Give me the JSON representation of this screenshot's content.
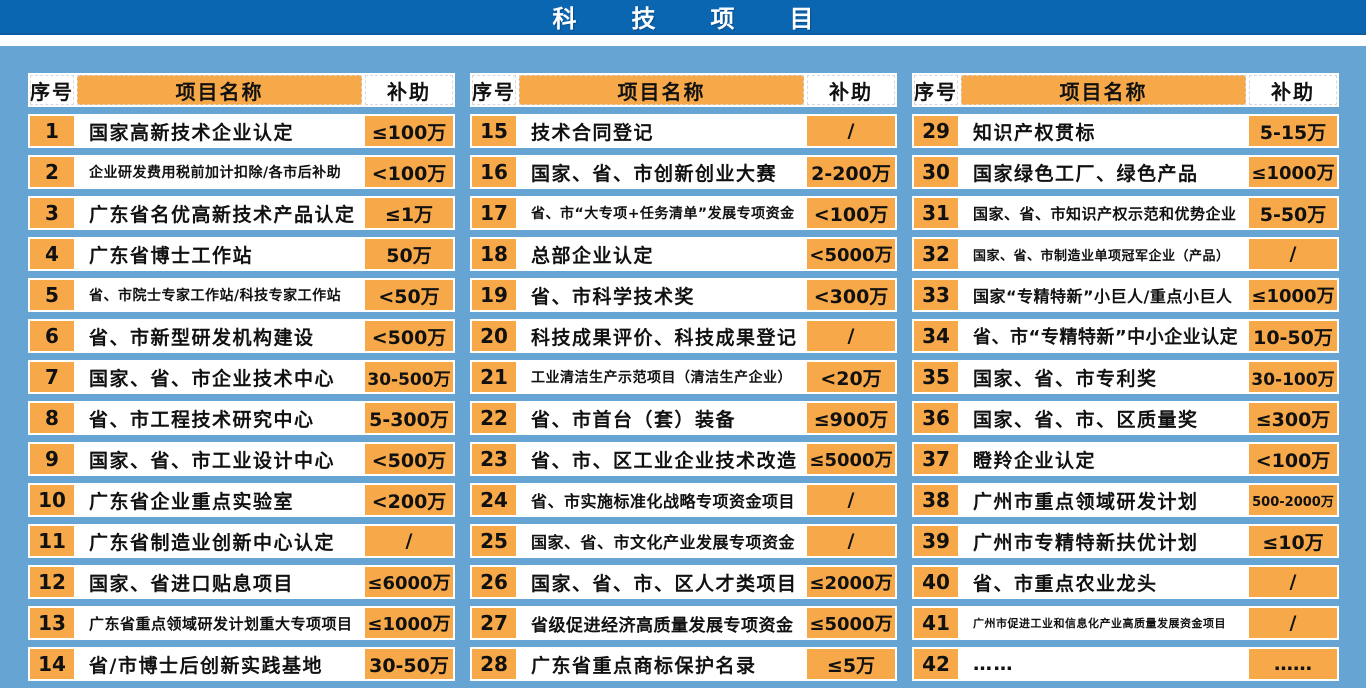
{
  "title": "科技项目",
  "columns": {
    "index": "序号",
    "name": "项目名称",
    "subsidy": "补助"
  },
  "colors": {
    "top_bar_blue": "#0b66b2",
    "background_blue": "#66a5d3",
    "cell_orange": "#f7a94a",
    "cell_white": "#ffffff",
    "text_dark": "#111111",
    "title_white": "#ffffff"
  },
  "tables": [
    {
      "rows": [
        {
          "no": "1",
          "name": "国家高新技术企业认定",
          "subsidy": "≤100万"
        },
        {
          "no": "2",
          "name": "企业研发费用税前加计扣除/各市后补助",
          "subsidy": "<100万"
        },
        {
          "no": "3",
          "name": "广东省名优高新技术产品认定",
          "subsidy": "≤1万"
        },
        {
          "no": "4",
          "name": "广东省博士工作站",
          "subsidy": "50万"
        },
        {
          "no": "5",
          "name": "省、市院士专家工作站/科技专家工作站",
          "subsidy": "<50万"
        },
        {
          "no": "6",
          "name": "省、市新型研发机构建设",
          "subsidy": "<500万"
        },
        {
          "no": "7",
          "name": "国家、省、市企业技术中心",
          "subsidy": "30-500万"
        },
        {
          "no": "8",
          "name": "省、市工程技术研究中心",
          "subsidy": "5-300万"
        },
        {
          "no": "9",
          "name": "国家、省、市工业设计中心",
          "subsidy": "<500万"
        },
        {
          "no": "10",
          "name": "广东省企业重点实验室",
          "subsidy": "<200万"
        },
        {
          "no": "11",
          "name": "广东省制造业创新中心认定",
          "subsidy": "/"
        },
        {
          "no": "12",
          "name": "国家、省进口贴息项目",
          "subsidy": "≤6000万"
        },
        {
          "no": "13",
          "name": "广东省重点领域研发计划重大专项项目",
          "subsidy": "≤1000万"
        },
        {
          "no": "14",
          "name": "省/市博士后创新实践基地",
          "subsidy": "30-50万"
        }
      ]
    },
    {
      "rows": [
        {
          "no": "15",
          "name": "技术合同登记",
          "subsidy": "/"
        },
        {
          "no": "16",
          "name": "国家、省、市创新创业大赛",
          "subsidy": "2-200万"
        },
        {
          "no": "17",
          "name": "省、市“大专项+任务清单”发展专项资金",
          "subsidy": "<100万"
        },
        {
          "no": "18",
          "name": "总部企业认定",
          "subsidy": "<5000万"
        },
        {
          "no": "19",
          "name": "省、市科学技术奖",
          "subsidy": "<300万"
        },
        {
          "no": "20",
          "name": "科技成果评价、科技成果登记",
          "subsidy": "/"
        },
        {
          "no": "21",
          "name": "工业清洁生产示范项目（清洁生产企业）",
          "subsidy": "<20万"
        },
        {
          "no": "22",
          "name": "省、市首台（套）装备",
          "subsidy": "≤900万"
        },
        {
          "no": "23",
          "name": "省、市、区工业企业技术改造",
          "subsidy": "≤5000万"
        },
        {
          "no": "24",
          "name": "省、市实施标准化战略专项资金项目",
          "subsidy": "/"
        },
        {
          "no": "25",
          "name": "国家、省、市文化产业发展专项资金",
          "subsidy": "/"
        },
        {
          "no": "26",
          "name": "国家、省、市、区人才类项目",
          "subsidy": "≤2000万"
        },
        {
          "no": "27",
          "name": "省级促进经济高质量发展专项资金",
          "subsidy": "≤5000万"
        },
        {
          "no": "28",
          "name": "广东省重点商标保护名录",
          "subsidy": "≤5万"
        }
      ]
    },
    {
      "rows": [
        {
          "no": "29",
          "name": "知识产权贯标",
          "subsidy": "5-15万"
        },
        {
          "no": "30",
          "name": "国家绿色工厂、绿色产品",
          "subsidy": "≤1000万"
        },
        {
          "no": "31",
          "name": "国家、省、市知识产权示范和优势企业",
          "subsidy": "5-50万"
        },
        {
          "no": "32",
          "name": "国家、省、市制造业单项冠军企业（产品）",
          "subsidy": "/"
        },
        {
          "no": "33",
          "name": "国家“专精特新”小巨人/重点小巨人",
          "subsidy": "≤1000万"
        },
        {
          "no": "34",
          "name": "省、市“专精特新”中小企业认定",
          "subsidy": "10-50万"
        },
        {
          "no": "35",
          "name": "国家、省、市专利奖",
          "subsidy": "30-100万"
        },
        {
          "no": "36",
          "name": "国家、省、市、区质量奖",
          "subsidy": "≤300万"
        },
        {
          "no": "37",
          "name": "瞪羚企业认定",
          "subsidy": "<100万"
        },
        {
          "no": "38",
          "name": "广州市重点领域研发计划",
          "subsidy": "500-2000万"
        },
        {
          "no": "39",
          "name": "广州市专精特新扶优计划",
          "subsidy": "≤10万"
        },
        {
          "no": "40",
          "name": "省、市重点农业龙头",
          "subsidy": "/"
        },
        {
          "no": "41",
          "name": "广州市促进工业和信息化产业高质量发展资金项目",
          "subsidy": "/"
        },
        {
          "no": "42",
          "name": "……",
          "subsidy": "……"
        }
      ]
    }
  ]
}
